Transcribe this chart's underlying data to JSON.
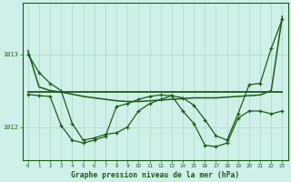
{
  "background_color": "#cff0e8",
  "grid_color": "#b8ddd0",
  "line_color_dark": "#1a5c1a",
  "line_color_med": "#2a7a2a",
  "xlabel": "Graphe pression niveau de la mer (hPa)",
  "xlim": [
    -0.5,
    23.5
  ],
  "ylim": [
    1011.55,
    1013.7
  ],
  "yticks": [
    1012,
    1013
  ],
  "xticks": [
    0,
    1,
    2,
    3,
    4,
    5,
    6,
    7,
    8,
    9,
    10,
    11,
    12,
    13,
    14,
    15,
    16,
    17,
    18,
    19,
    20,
    21,
    22,
    23
  ],
  "series": {
    "line_jagged": [
      1013.0,
      1012.75,
      1012.6,
      1012.5,
      1012.05,
      1011.82,
      1011.85,
      1011.9,
      1011.92,
      1012.0,
      1012.22,
      1012.32,
      1012.38,
      1012.43,
      1012.4,
      1012.3,
      1012.1,
      1011.88,
      1011.82,
      1012.18,
      1012.58,
      1012.6,
      1013.08,
      1013.48
    ],
    "line_flat": [
      1012.48,
      1012.48,
      1012.48,
      1012.48,
      1012.48,
      1012.48,
      1012.48,
      1012.48,
      1012.48,
      1012.48,
      1012.48,
      1012.48,
      1012.48,
      1012.48,
      1012.48,
      1012.48,
      1012.48,
      1012.48,
      1012.48,
      1012.48,
      1012.48,
      1012.48,
      1012.48,
      1012.48
    ],
    "line_spread_top": [
      1013.05,
      1012.55,
      1012.5,
      1012.48,
      1012.45,
      1012.42,
      1012.4,
      1012.38,
      1012.36,
      1012.35,
      1012.35,
      1012.36,
      1012.37,
      1012.38,
      1012.39,
      1012.4,
      1012.4,
      1012.4,
      1012.41,
      1012.42,
      1012.43,
      1012.44,
      1012.5,
      1013.52
    ],
    "line_mid_jagged": [
      1012.45,
      1012.43,
      1012.42,
      1012.02,
      1011.82,
      1011.78,
      1011.82,
      1011.87,
      1012.28,
      1012.32,
      1012.38,
      1012.42,
      1012.44,
      1012.43,
      1012.22,
      1012.05,
      1011.75,
      1011.73,
      1011.78,
      1012.12,
      1012.22,
      1012.22,
      1012.18,
      1012.22
    ]
  }
}
